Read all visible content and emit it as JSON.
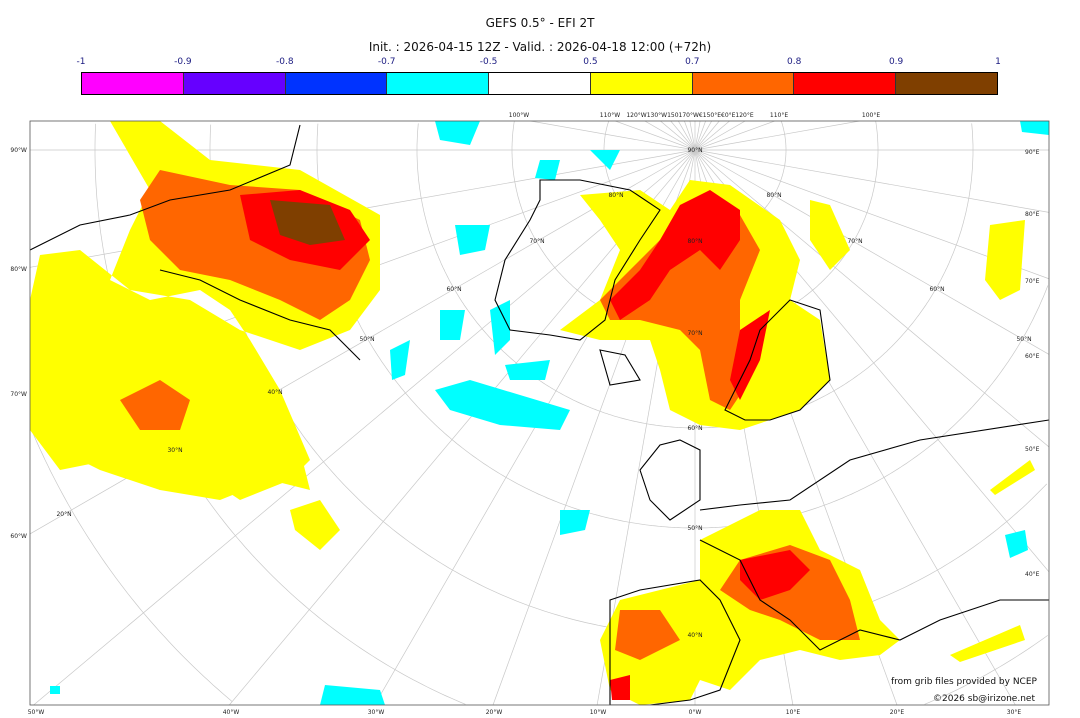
{
  "header": {
    "title": "GEFS 0.5° - EFI 2T",
    "subtitle": "Init. : 2026-04-15 12Z - Valid. : 2026-04-18 12:00 (+72h)"
  },
  "colorbar": {
    "labels": [
      "-1",
      "-0.9",
      "-0.8",
      "-0.7",
      "-0.5",
      "0.5",
      "0.7",
      "0.8",
      "0.9",
      "1"
    ],
    "colors": [
      "#ff00ff",
      "#6600ff",
      "#0033ff",
      "#00ffff",
      "#ffffff",
      "#ffff00",
      "#ff6600",
      "#ff0000",
      "#7f3f00"
    ]
  },
  "map": {
    "left_labels": [
      "90°W",
      "80°W",
      "70°W",
      "60°W"
    ],
    "right_labels": [
      "90°E",
      "80°E",
      "70°E",
      "60°E",
      "50°E",
      "40°E"
    ],
    "bottom_labels": [
      "50°W",
      "40°W",
      "30°W",
      "20°W",
      "10°W",
      "0°W",
      "10°E",
      "20°E",
      "30°E"
    ],
    "top_labels": [
      "100°W",
      "110°W",
      "120°W130°W150170°W€150°E€0°E120°E",
      "110°E",
      "100°E"
    ],
    "lat_labels": [
      "90°N",
      "80°N",
      "70°N",
      "60°N",
      "50°N",
      "40°N",
      "80°N",
      "70°N",
      "60°N",
      "50°N",
      "40°N",
      "30°N",
      "20°N",
      "80°N",
      "70°N",
      "60°N",
      "50°N"
    ]
  },
  "credits": {
    "line1": "from grib files provided by NCEP",
    "line2": "©2026 sb@irizone.net"
  }
}
